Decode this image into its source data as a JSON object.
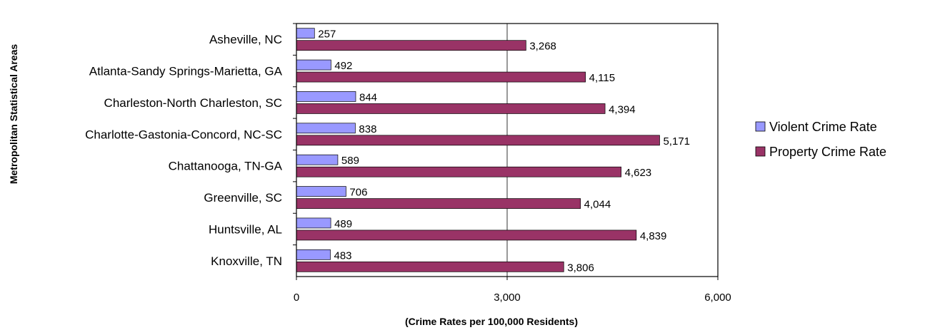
{
  "chart_data": {
    "type": "bar",
    "orientation": "horizontal",
    "title": "",
    "xlabel": "(Crime Rates per 100,000 Residents)",
    "ylabel": "Metropolitan Statistical Areas",
    "xlim": [
      0,
      6000
    ],
    "xticks": [
      0,
      3000,
      6000
    ],
    "xtick_labels": [
      "0",
      "3,000",
      "6,000"
    ],
    "grid": "vertical gridline at 3,000",
    "legend_position": "right",
    "categories": [
      "Asheville, NC",
      "Atlanta-Sandy Springs-Marietta, GA",
      "Charleston-North Charleston, SC",
      "Charlotte-Gastonia-Concord, NC-SC",
      "Chattanooga, TN-GA",
      "Greenville, SC",
      "Huntsville, AL",
      "Knoxville, TN"
    ],
    "series": [
      {
        "name": "Violent Crime Rate",
        "color": "#9999ff",
        "values": [
          257,
          492,
          844,
          838,
          589,
          706,
          489,
          483
        ],
        "labels": [
          "257",
          "492",
          "844",
          "838",
          "589",
          "706",
          "489",
          "483"
        ]
      },
      {
        "name": "Property Crime Rate",
        "color": "#993366",
        "values": [
          3268,
          4115,
          4394,
          5171,
          4623,
          4044,
          4839,
          3806
        ],
        "labels": [
          "3,268",
          "4,115",
          "4,394",
          "5,171",
          "4,623",
          "4,044",
          "4,839",
          "3,806"
        ]
      }
    ]
  }
}
